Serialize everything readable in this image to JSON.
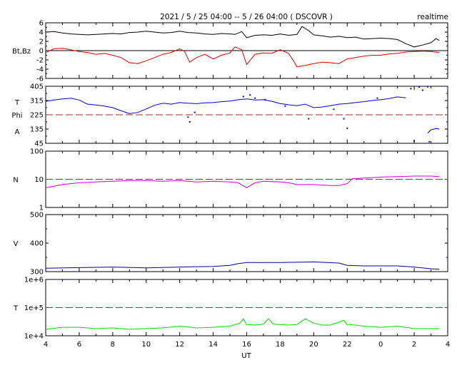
{
  "title": "2021 / 5 / 25  04:00 -- 5 / 26  04:00 ( DSCOVR )",
  "realtime_label": "realtime",
  "xlabel": "UT",
  "x_ticks": [
    "4",
    "6",
    "8",
    "10",
    "12",
    "14",
    "16",
    "18",
    "20",
    "22",
    "0",
    "2",
    "4"
  ],
  "panels": [
    {
      "id": "bfield",
      "ylabels": [
        "Bt,Bz"
      ],
      "yticks": [
        "6",
        "4",
        "2",
        "0",
        "-2",
        "-4",
        "-6"
      ],
      "ylim": [
        -6,
        6
      ],
      "scale": "linear",
      "zero_line": 0,
      "series": [
        {
          "color": "#000000",
          "style": "line",
          "points": [
            [
              4,
              4.0
            ],
            [
              4.5,
              4.1
            ],
            [
              5,
              3.8
            ],
            [
              5.5,
              3.6
            ],
            [
              6,
              3.5
            ],
            [
              6.5,
              3.4
            ],
            [
              7,
              3.5
            ],
            [
              7.5,
              3.6
            ],
            [
              8,
              3.7
            ],
            [
              8.5,
              3.6
            ],
            [
              9,
              3.9
            ],
            [
              9.5,
              4.0
            ],
            [
              10,
              4.2
            ],
            [
              10.5,
              4.0
            ],
            [
              11,
              3.8
            ],
            [
              11.5,
              3.9
            ],
            [
              12,
              4.2
            ],
            [
              12.5,
              3.9
            ],
            [
              13,
              3.8
            ],
            [
              13.5,
              3.6
            ],
            [
              14,
              3.5
            ],
            [
              14.5,
              3.7
            ],
            [
              15,
              3.6
            ],
            [
              15.3,
              3.5
            ],
            [
              15.7,
              4.1
            ],
            [
              16,
              2.8
            ],
            [
              16.5,
              3.3
            ],
            [
              17,
              3.4
            ],
            [
              17.5,
              3.3
            ],
            [
              18,
              3.6
            ],
            [
              18.5,
              3.3
            ],
            [
              19,
              3.5
            ],
            [
              19.3,
              5.2
            ],
            [
              19.7,
              4.3
            ],
            [
              20,
              3.4
            ],
            [
              20.5,
              3.2
            ],
            [
              21,
              2.9
            ],
            [
              21.5,
              3.1
            ],
            [
              22,
              2.8
            ],
            [
              22.5,
              2.9
            ],
            [
              23,
              2.5
            ],
            [
              23.5,
              2.6
            ],
            [
              24,
              2.7
            ],
            [
              24.5,
              2.6
            ],
            [
              25,
              2.4
            ],
            [
              25.5,
              1.5
            ],
            [
              26,
              0.8
            ],
            [
              26.5,
              1.2
            ],
            [
              27,
              1.7
            ],
            [
              27.3,
              2.6
            ],
            [
              27.5,
              2.2
            ]
          ]
        },
        {
          "color": "#e00000",
          "style": "line",
          "points": [
            [
              4,
              -0.4
            ],
            [
              4.5,
              0.4
            ],
            [
              5,
              0.5
            ],
            [
              5.5,
              0.2
            ],
            [
              6,
              -0.2
            ],
            [
              6.5,
              -0.4
            ],
            [
              7,
              -0.8
            ],
            [
              7.5,
              -0.6
            ],
            [
              8,
              -1.0
            ],
            [
              8.5,
              -1.5
            ],
            [
              9,
              -2.6
            ],
            [
              9.5,
              -2.8
            ],
            [
              10,
              -2.2
            ],
            [
              10.5,
              -1.5
            ],
            [
              11,
              -0.8
            ],
            [
              11.5,
              -0.4
            ],
            [
              12,
              0.4
            ],
            [
              12.3,
              -0.2
            ],
            [
              12.6,
              -2.5
            ],
            [
              13,
              -1.5
            ],
            [
              13.5,
              -0.8
            ],
            [
              14,
              -1.8
            ],
            [
              14.5,
              -1.0
            ],
            [
              15,
              -0.5
            ],
            [
              15.3,
              0.8
            ],
            [
              15.7,
              0.2
            ],
            [
              16,
              -3.0
            ],
            [
              16.5,
              -0.8
            ],
            [
              17,
              -0.5
            ],
            [
              17.5,
              -0.6
            ],
            [
              18,
              0.2
            ],
            [
              18.5,
              -0.6
            ],
            [
              18.8,
              -2.2
            ],
            [
              19,
              -3.5
            ],
            [
              19.5,
              -3.2
            ],
            [
              20,
              -2.8
            ],
            [
              20.5,
              -2.5
            ],
            [
              21,
              -2.6
            ],
            [
              21.5,
              -2.8
            ],
            [
              22,
              -1.8
            ],
            [
              22.5,
              -1.5
            ],
            [
              23,
              -1.2
            ],
            [
              23.5,
              -1.0
            ],
            [
              24,
              -1.0
            ],
            [
              24.5,
              -0.7
            ],
            [
              25,
              -0.6
            ],
            [
              25.5,
              -0.3
            ],
            [
              26,
              -0.2
            ],
            [
              26.5,
              -0.1
            ],
            [
              27,
              -0.2
            ],
            [
              27.5,
              -0.4
            ]
          ]
        }
      ]
    },
    {
      "id": "phi",
      "ylabels": [
        "T",
        "Phi",
        "A"
      ],
      "yticks": [
        "405",
        "315",
        "225",
        "135",
        "45"
      ],
      "ylim": [
        45,
        405
      ],
      "scale": "linear",
      "ref_line": 225,
      "series": [
        {
          "color": "#0000cc",
          "style": "line",
          "points": [
            [
              4,
              310
            ],
            [
              4.5,
              318
            ],
            [
              5,
              325
            ],
            [
              5.5,
              330
            ],
            [
              6,
              318
            ],
            [
              6.5,
              292
            ],
            [
              7,
              287
            ],
            [
              7.5,
              280
            ],
            [
              8,
              270
            ],
            [
              8.5,
              250
            ],
            [
              9,
              232
            ],
            [
              9.5,
              240
            ],
            [
              10,
              262
            ],
            [
              10.5,
              285
            ],
            [
              11,
              298
            ],
            [
              11.5,
              292
            ],
            [
              12,
              302
            ],
            [
              12.5,
              298
            ],
            [
              13,
              295
            ],
            [
              13.5,
              300
            ],
            [
              14,
              302
            ],
            [
              14.5,
              308
            ],
            [
              15,
              312
            ],
            [
              15.5,
              320
            ],
            [
              16,
              325
            ],
            [
              16.5,
              318
            ],
            [
              17,
              320
            ],
            [
              17.5,
              310
            ],
            [
              18,
              296
            ],
            [
              18.5,
              288
            ],
            [
              19,
              282
            ],
            [
              19.5,
              292
            ],
            [
              20,
              270
            ],
            [
              20.5,
              274
            ],
            [
              21,
              282
            ],
            [
              21.5,
              292
            ],
            [
              22,
              296
            ],
            [
              22.5,
              302
            ],
            [
              23,
              308
            ],
            [
              23.5,
              315
            ],
            [
              24,
              320
            ],
            [
              24.5,
              327
            ],
            [
              25,
              338
            ],
            [
              25.5,
              332
            ]
          ]
        },
        {
          "color": "#0000cc",
          "style": "dots",
          "points": [
            [
              12.5,
              210
            ],
            [
              12.6,
              180
            ],
            [
              12.9,
              240
            ],
            [
              15.8,
              340
            ],
            [
              16.2,
              350
            ],
            [
              16.5,
              330
            ],
            [
              17.1,
              320
            ],
            [
              18.3,
              280
            ],
            [
              19.7,
              200
            ],
            [
              21.2,
              260
            ],
            [
              21.8,
              200
            ],
            [
              22.0,
              140
            ],
            [
              23.8,
              330
            ],
            [
              25.8,
              390
            ],
            [
              26.3,
              400
            ],
            [
              26.5,
              380
            ],
            [
              26.8,
              402
            ],
            [
              26.0,
              60
            ],
            [
              26.9,
              55
            ]
          ]
        },
        {
          "color": "#0000cc",
          "style": "line",
          "points": [
            [
              26.8,
              110
            ],
            [
              27.0,
              130
            ],
            [
              27.3,
              138
            ],
            [
              27.5,
              135
            ]
          ]
        }
      ]
    },
    {
      "id": "density",
      "ylabels": [
        "N"
      ],
      "yticks": [
        "100",
        "10",
        "1"
      ],
      "ylim": [
        1,
        100
      ],
      "scale": "log",
      "ref_line": 10,
      "series": [
        {
          "color": "#cc00cc",
          "style": "line",
          "points": [
            [
              4,
              5.0
            ],
            [
              5,
              6.5
            ],
            [
              6,
              7.5
            ],
            [
              7,
              8.0
            ],
            [
              8,
              8.5
            ],
            [
              9,
              9.0
            ],
            [
              10,
              9.0
            ],
            [
              11,
              8.5
            ],
            [
              12,
              9.0
            ],
            [
              13,
              8.0
            ],
            [
              14,
              8.5
            ],
            [
              15,
              8.0
            ],
            [
              15.5,
              7.5
            ],
            [
              16,
              5.0
            ],
            [
              16.5,
              7.5
            ],
            [
              17,
              8.5
            ],
            [
              18,
              8.0
            ],
            [
              18.5,
              7.5
            ],
            [
              19,
              6.5
            ],
            [
              20,
              6.5
            ],
            [
              21,
              6.0
            ],
            [
              21.5,
              6.0
            ],
            [
              22,
              7.0
            ],
            [
              22.3,
              10.5
            ],
            [
              23,
              11.0
            ],
            [
              24,
              12.0
            ],
            [
              25,
              12.5
            ],
            [
              26,
              13.0
            ],
            [
              27,
              13.0
            ],
            [
              27.5,
              12.5
            ]
          ]
        }
      ]
    },
    {
      "id": "velocity",
      "ylabels": [
        "V"
      ],
      "yticks": [
        "500",
        "400",
        "300"
      ],
      "ylim": [
        300,
        500
      ],
      "scale": "linear",
      "series": [
        {
          "color": "#000099",
          "style": "line",
          "points": [
            [
              4,
              312
            ],
            [
              6,
              314
            ],
            [
              8,
              316
            ],
            [
              10,
              313
            ],
            [
              12,
              316
            ],
            [
              14,
              318
            ],
            [
              15,
              322
            ],
            [
              15.5,
              328
            ],
            [
              16,
              332
            ],
            [
              18,
              332
            ],
            [
              20,
              334
            ],
            [
              21.5,
              330
            ],
            [
              22,
              322
            ],
            [
              23,
              320
            ],
            [
              24,
              320
            ],
            [
              25,
              320
            ],
            [
              26,
              316
            ],
            [
              27,
              310
            ],
            [
              27.5,
              308
            ]
          ]
        }
      ]
    },
    {
      "id": "temperature",
      "ylabels": [
        "T"
      ],
      "yticks": [
        "1e+6",
        "1e+5",
        "1e+4"
      ],
      "ylim": [
        10000,
        1000000
      ],
      "scale": "log",
      "ref_line": 100000,
      "series": [
        {
          "color": "#00dd00",
          "style": "line",
          "points": [
            [
              4,
              17000
            ],
            [
              5,
              20000
            ],
            [
              6,
              20000
            ],
            [
              7,
              18000
            ],
            [
              8,
              19000
            ],
            [
              9,
              17000
            ],
            [
              10,
              18000
            ],
            [
              11,
              19000
            ],
            [
              12,
              22000
            ],
            [
              13,
              19000
            ],
            [
              14,
              20000
            ],
            [
              15,
              22000
            ],
            [
              15.6,
              28000
            ],
            [
              15.8,
              40000
            ],
            [
              16,
              25000
            ],
            [
              16.5,
              24000
            ],
            [
              17,
              26000
            ],
            [
              17.3,
              40000
            ],
            [
              17.6,
              26000
            ],
            [
              18,
              25000
            ],
            [
              18.5,
              24000
            ],
            [
              19,
              25000
            ],
            [
              19.5,
              40000
            ],
            [
              20,
              28000
            ],
            [
              20.5,
              24000
            ],
            [
              21,
              24000
            ],
            [
              21.8,
              35000
            ],
            [
              22,
              25000
            ],
            [
              22.5,
              24000
            ],
            [
              23,
              22000
            ],
            [
              24,
              20000
            ],
            [
              25,
              22000
            ],
            [
              26,
              18000
            ],
            [
              27,
              18000
            ],
            [
              27.5,
              18000
            ]
          ]
        }
      ]
    }
  ]
}
